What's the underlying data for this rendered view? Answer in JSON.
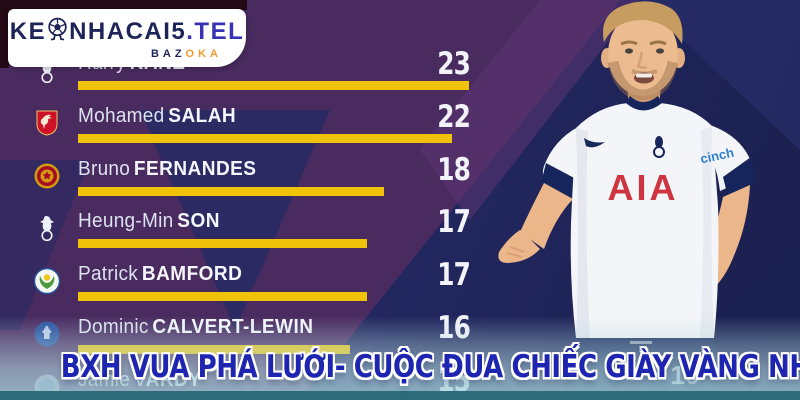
{
  "brand": {
    "line1_pre": "KE",
    "line1_ball": "soccer-ball-mascot-icon",
    "line1_post": "NHACAI5",
    "line1_tld": ".TEL",
    "line2_pre": "BAZ",
    "line2_post": "OKA"
  },
  "leaderboard": {
    "players": [
      {
        "first": "Harry",
        "last": "KANE",
        "goals": 23,
        "club": "Tottenham Hotspur",
        "club_id": "tottenham"
      },
      {
        "first": "Mohamed",
        "last": "SALAH",
        "goals": 22,
        "club": "Liverpool",
        "club_id": "liverpool"
      },
      {
        "first": "Bruno",
        "last": "FERNANDES",
        "goals": 18,
        "club": "Manchester United",
        "club_id": "man-united"
      },
      {
        "first": "Heung-Min",
        "last": "SON",
        "goals": 17,
        "club": "Tottenham Hotspur",
        "club_id": "tottenham"
      },
      {
        "first": "Patrick",
        "last": "BAMFORD",
        "goals": 17,
        "club": "Leeds United",
        "club_id": "leeds"
      },
      {
        "first": "Dominic",
        "last": "CALVERT-LEWIN",
        "goals": 16,
        "club": "Everton",
        "club_id": "everton"
      },
      {
        "first": "Jamie",
        "last": "VARDY",
        "goals": 15,
        "club": "Leicester City",
        "club_id": "leicester"
      }
    ]
  },
  "banner": {
    "text": "BXH VUA PHÁ LƯỚI- CUỘC ĐUA CHIẾC GIÀY VÀNG NHA"
  },
  "player_image": {
    "label": "Harry Kane in Tottenham Hotspur home kit",
    "shirt_sponsor": "AIA",
    "sleeve_sponsor": "cinch",
    "shorts_number": "10"
  },
  "colors": {
    "bar": "#f0c30a",
    "banner_text": "#1e25b0",
    "background_navy": "#232861",
    "background_purple": "#4a2b60",
    "bottom_bar": "#2e6b7a",
    "sponsor_red": "#cf3540"
  },
  "chart_data": {
    "type": "bar",
    "orientation": "horizontal",
    "title": "BXH VUA PHÁ LƯỚI- CUỘC ĐUA CHIẾC GIÀY VÀNG NHA",
    "categories": [
      "Harry KANE",
      "Mohamed SALAH",
      "Bruno FERNANDES",
      "Heung-Min SON",
      "Patrick BAMFORD",
      "Dominic CALVERT-LEWIN",
      "Jamie VARDY"
    ],
    "values": [
      23,
      22,
      18,
      17,
      17,
      16,
      15
    ],
    "series_clubs": [
      "Tottenham Hotspur",
      "Liverpool",
      "Manchester United",
      "Tottenham Hotspur",
      "Leeds United",
      "Everton",
      "Leicester City"
    ],
    "bar_color": "#f0c30a",
    "value_labels_shown": true,
    "xlim": [
      0,
      23
    ],
    "grid": false,
    "legend": false
  }
}
